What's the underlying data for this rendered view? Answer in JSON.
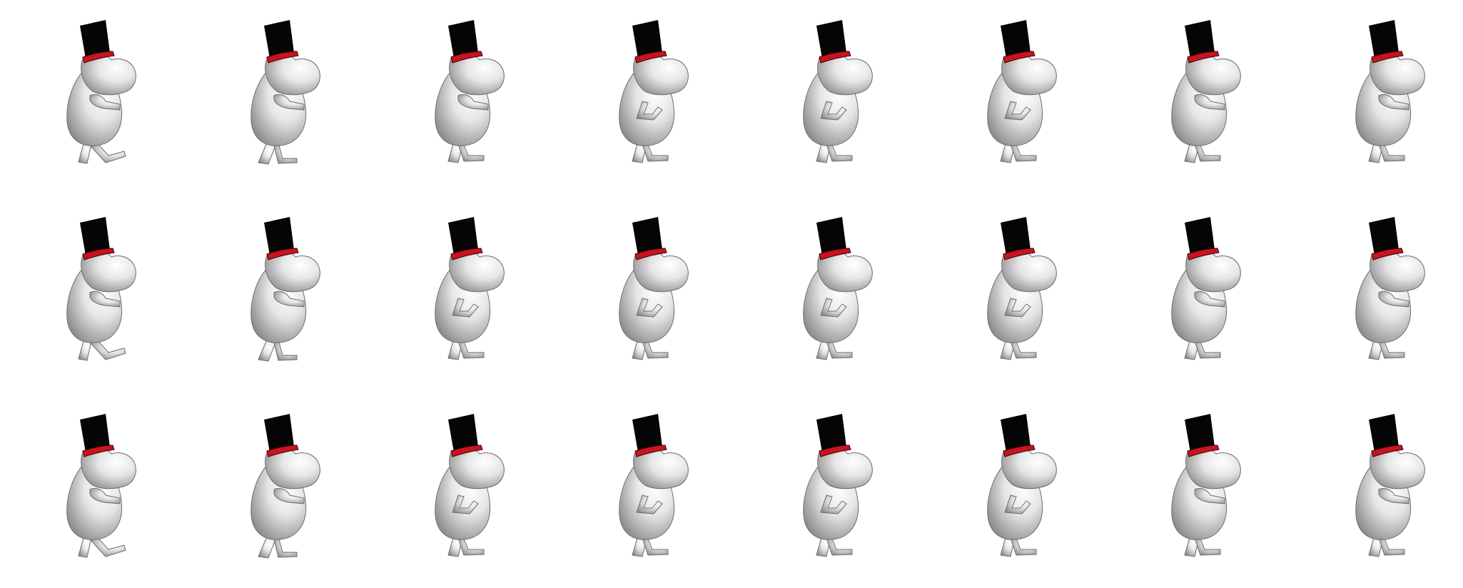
{
  "sheet": {
    "rows": 3,
    "columns": 8,
    "frame_count": 24,
    "background_color": "#ffffff"
  },
  "character": {
    "body_color": "#e6e6e6",
    "shade_color": "#8c8c8c",
    "hat_color": "#050505",
    "hat_band_color": "#c8141e"
  },
  "frames": [
    {
      "row": 1,
      "column": 1,
      "pose": "step-forward"
    },
    {
      "row": 1,
      "column": 2,
      "pose": "step-back"
    },
    {
      "row": 1,
      "column": 3,
      "pose": "arm-forward"
    },
    {
      "row": 1,
      "column": 4,
      "pose": "arm-folded"
    },
    {
      "row": 1,
      "column": 5,
      "pose": "arm-folded"
    },
    {
      "row": 1,
      "column": 6,
      "pose": "arm-folded"
    },
    {
      "row": 1,
      "column": 7,
      "pose": "arm-forward"
    },
    {
      "row": 1,
      "column": 8,
      "pose": "arm-forward"
    },
    {
      "row": 2,
      "column": 1,
      "pose": "step-forward"
    },
    {
      "row": 2,
      "column": 2,
      "pose": "step-back"
    },
    {
      "row": 2,
      "column": 3,
      "pose": "arm-folded"
    },
    {
      "row": 2,
      "column": 4,
      "pose": "arm-folded"
    },
    {
      "row": 2,
      "column": 5,
      "pose": "arm-folded"
    },
    {
      "row": 2,
      "column": 6,
      "pose": "arm-folded"
    },
    {
      "row": 2,
      "column": 7,
      "pose": "arm-forward"
    },
    {
      "row": 2,
      "column": 8,
      "pose": "arm-forward"
    },
    {
      "row": 3,
      "column": 1,
      "pose": "step-forward"
    },
    {
      "row": 3,
      "column": 2,
      "pose": "step-back"
    },
    {
      "row": 3,
      "column": 3,
      "pose": "arm-folded"
    },
    {
      "row": 3,
      "column": 4,
      "pose": "arm-folded"
    },
    {
      "row": 3,
      "column": 5,
      "pose": "arm-folded"
    },
    {
      "row": 3,
      "column": 6,
      "pose": "arm-folded"
    },
    {
      "row": 3,
      "column": 7,
      "pose": "arm-forward"
    },
    {
      "row": 3,
      "column": 8,
      "pose": "arm-forward"
    }
  ]
}
